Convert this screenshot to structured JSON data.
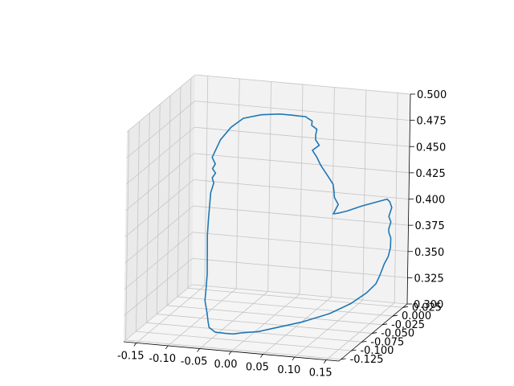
{
  "chart_data": {
    "type": "line",
    "projection": "3d",
    "grid": true,
    "legend": "none",
    "colors": {
      "line": "#1f77b4",
      "pane_back": "#f2f2f2",
      "pane_side": "#eaeaea",
      "pane_floor": "#f5f5f5",
      "gridline": "#c4c4c4",
      "axis": "#000000"
    },
    "axes": {
      "x": {
        "lim": [
          -0.17,
          0.17
        ],
        "ticks": [
          "-0.15",
          "-0.10",
          "-0.05",
          "0.00",
          "0.05",
          "0.10",
          "0.15"
        ],
        "tick_values": [
          -0.15,
          -0.1,
          -0.05,
          0,
          0.05,
          0.1,
          0.15
        ]
      },
      "y": {
        "lim": [
          -0.13,
          0.035
        ],
        "ticks": [
          "-0.125",
          "-0.100",
          "-0.075",
          "-0.050",
          "-0.025",
          "0.000",
          "0.025"
        ],
        "tick_values": [
          -0.125,
          -0.1,
          -0.075,
          -0.05,
          -0.025,
          0,
          0.025
        ]
      },
      "z": {
        "lim": [
          0.3,
          0.5
        ],
        "ticks": [
          "0.300",
          "0.325",
          "0.350",
          "0.375",
          "0.400",
          "0.425",
          "0.450",
          "0.475",
          "0.500"
        ],
        "tick_values": [
          0.3,
          0.325,
          0.35,
          0.375,
          0.4,
          0.425,
          0.45,
          0.475,
          0.5
        ]
      }
    },
    "series": [
      {
        "x": [
          -0.01,
          0.01,
          0.03,
          0.06,
          0.09,
          0.11,
          0.125,
          0.135,
          0.14,
          0.145,
          0.15,
          0.152,
          0.151,
          0.149,
          0.15,
          0.152,
          0.15,
          0.153,
          0.151,
          0.148,
          0.135,
          0.115,
          0.095,
          0.08,
          0.07,
          0.075,
          0.07,
          0.068,
          0.065,
          0.055,
          0.04,
          0.03,
          0.02,
          0.032,
          0.028,
          0.03,
          0.033,
          0.026,
          0.028,
          0.022,
          0.02,
          0.01,
          0.0,
          -0.02,
          -0.05,
          -0.08,
          -0.1,
          -0.115,
          -0.12,
          -0.125,
          -0.12,
          -0.123,
          -0.118,
          -0.122,
          -0.118,
          -0.12,
          -0.115,
          -0.11,
          -0.105,
          -0.095,
          -0.085,
          -0.08,
          -0.075,
          -0.065,
          -0.06,
          -0.055,
          -0.045,
          -0.03,
          -0.02,
          -0.01
        ],
        "y": [
          -0.09,
          -0.08,
          -0.065,
          -0.05,
          -0.03,
          -0.01,
          0.005,
          0.012,
          0.014,
          0.016,
          0.018,
          0.02,
          0.022,
          0.02,
          0.018,
          0.02,
          0.018,
          0.02,
          0.018,
          0.016,
          0.012,
          0.006,
          0.0,
          0.004,
          0.006,
          0.01,
          0.008,
          0.01,
          0.012,
          0.015,
          0.02,
          0.025,
          0.03,
          0.028,
          0.025,
          0.022,
          0.02,
          0.018,
          0.016,
          0.014,
          0.012,
          0.012,
          0.01,
          0.01,
          0.012,
          0.015,
          0.016,
          0.014,
          0.012,
          0.01,
          0.01,
          0.008,
          0.008,
          0.006,
          0.004,
          0.0,
          -0.01,
          -0.02,
          -0.03,
          -0.045,
          -0.06,
          -0.07,
          -0.08,
          -0.09,
          -0.095,
          -0.1,
          -0.1,
          -0.098,
          -0.095,
          -0.09
        ],
        "z": [
          0.304,
          0.303,
          0.303,
          0.305,
          0.308,
          0.312,
          0.318,
          0.325,
          0.333,
          0.343,
          0.35,
          0.358,
          0.366,
          0.372,
          0.376,
          0.382,
          0.388,
          0.396,
          0.402,
          0.405,
          0.403,
          0.4,
          0.396,
          0.392,
          0.39,
          0.398,
          0.405,
          0.41,
          0.416,
          0.422,
          0.43,
          0.436,
          0.44,
          0.446,
          0.452,
          0.458,
          0.464,
          0.468,
          0.473,
          0.476,
          0.478,
          0.478,
          0.479,
          0.479,
          0.476,
          0.47,
          0.46,
          0.448,
          0.44,
          0.432,
          0.426,
          0.422,
          0.418,
          0.414,
          0.41,
          0.402,
          0.394,
          0.384,
          0.372,
          0.358,
          0.346,
          0.336,
          0.328,
          0.32,
          0.314,
          0.31,
          0.306,
          0.305,
          0.304,
          0.304
        ]
      }
    ]
  }
}
